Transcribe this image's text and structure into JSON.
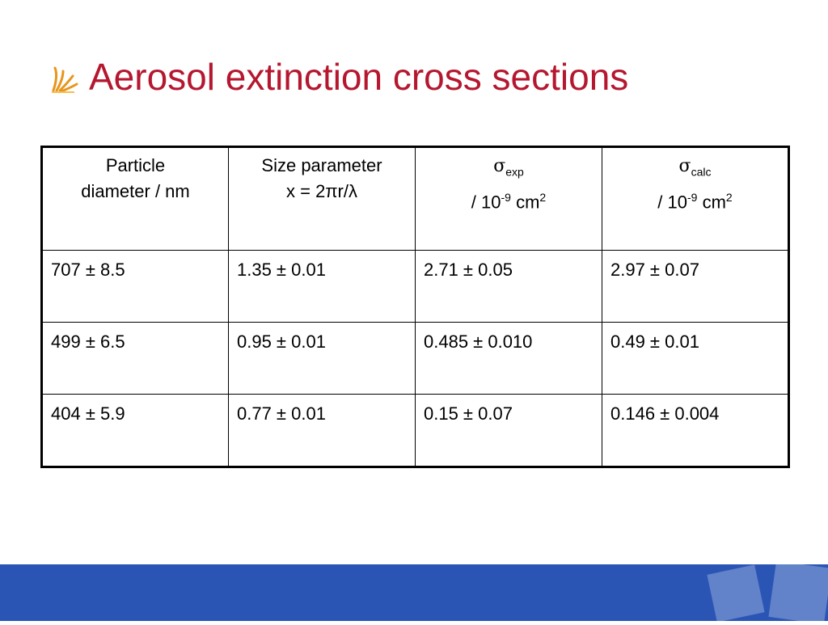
{
  "header": {
    "title": "Aerosol extinction cross sections"
  },
  "table": {
    "headers": [
      {
        "line1": "Particle",
        "line2": "diameter / nm"
      },
      {
        "line1": "Size parameter",
        "line2": "x = 2πr/λ"
      },
      {
        "symbol": "σ",
        "sub": "exp",
        "prefix": "/ 10",
        "exp": "-9",
        "unit": "cm",
        "unit_exp": "2"
      },
      {
        "symbol": "σ",
        "sub": "calc",
        "prefix": "/ 10",
        "exp": "-9",
        "unit": "cm",
        "unit_exp": "2"
      }
    ],
    "rows": [
      [
        "707 ± 8.5",
        "1.35 ± 0.01",
        "2.71 ± 0.05",
        "2.97 ± 0.07"
      ],
      [
        "499 ± 6.5",
        "0.95 ± 0.01",
        "0.485 ± 0.010",
        "0.49 ± 0.01"
      ],
      [
        "404 ± 5.9",
        "0.77 ± 0.01",
        "0.15 ± 0.07",
        "0.146 ± 0.004"
      ]
    ]
  }
}
